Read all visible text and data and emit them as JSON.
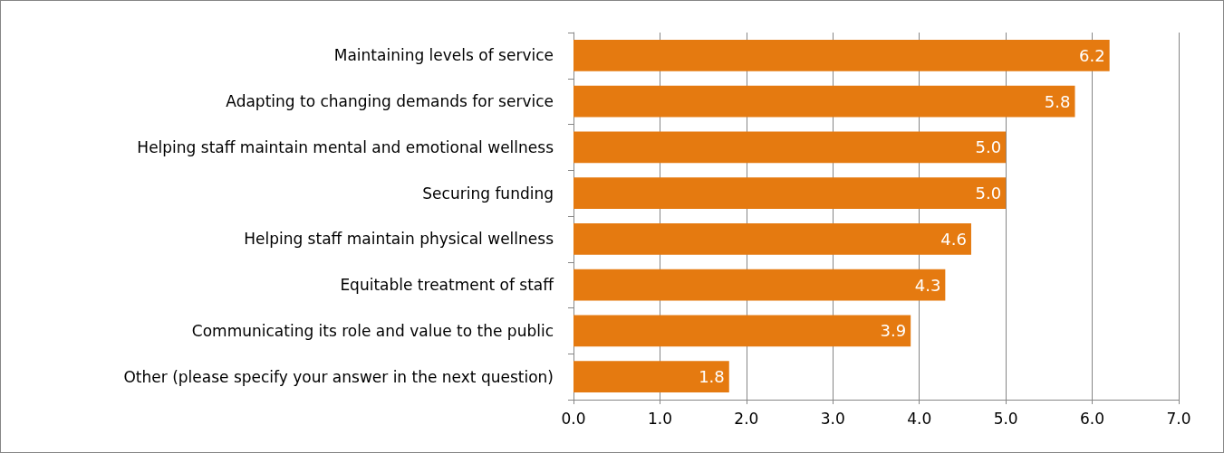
{
  "chart_data": {
    "type": "bar",
    "orientation": "horizontal",
    "categories": [
      "Maintaining levels of service",
      "Adapting to changing demands for service",
      "Helping staff maintain mental and emotional wellness",
      "Securing funding",
      "Helping staff maintain physical wellness",
      "Equitable treatment of staff",
      "Communicating its role and value to the public",
      "Other (please specify your answer in the next question)"
    ],
    "values": [
      6.2,
      5.8,
      5.0,
      5.0,
      4.6,
      4.3,
      3.9,
      1.8
    ],
    "value_labels": [
      "6.2",
      "5.8",
      "5.0",
      "5.0",
      "4.6",
      "4.3",
      "3.9",
      "1.8"
    ],
    "color": "#e57a10",
    "xlim": [
      0,
      7
    ],
    "xticks": [
      {
        "value": 0,
        "label": "0.0"
      },
      {
        "value": 1,
        "label": "1.0"
      },
      {
        "value": 2,
        "label": "2.0"
      },
      {
        "value": 3,
        "label": "3.0"
      },
      {
        "value": 4,
        "label": "4.0"
      },
      {
        "value": 5,
        "label": "5.0"
      },
      {
        "value": 6,
        "label": "6.0"
      },
      {
        "value": 7,
        "label": "7.0"
      }
    ],
    "grid": "x"
  }
}
